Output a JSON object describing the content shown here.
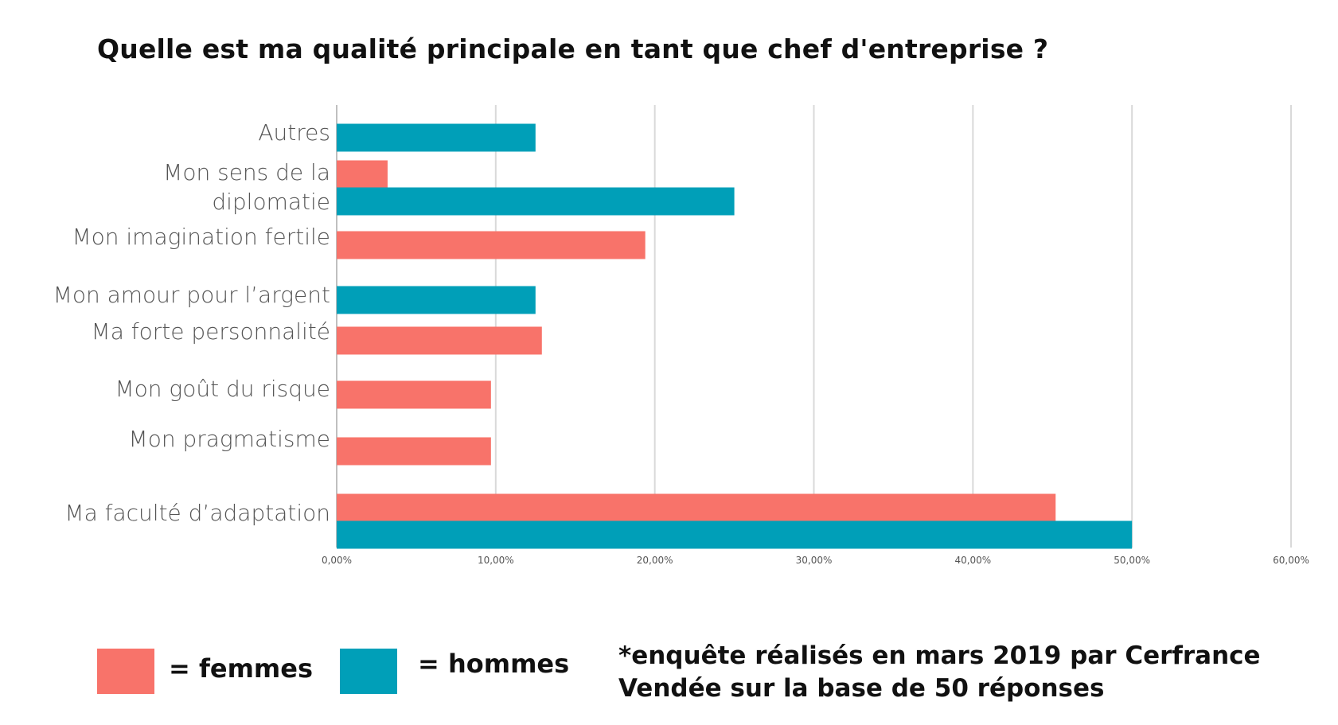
{
  "title": "Quelle est ma qualité principale en tant que chef d'entreprise ?",
  "colors": {
    "femmes": "#f8736a",
    "hommes": "#009fb8",
    "grid": "#d9d9d9",
    "axis": "#bfbfbf"
  },
  "chart_data": {
    "type": "bar",
    "orientation": "horizontal",
    "title": "Quelle est ma qualité principale en tant que chef d'entreprise ?",
    "categories": [
      "Autres",
      "Mon sens de la\ndiplomatie",
      "Mon imagination fertile",
      "Mon amour pour l’argent",
      "Ma forte personnalité",
      "Mon goût du risque",
      "Mon pragmatisme",
      "Ma faculté d’adaptation"
    ],
    "series": [
      {
        "name": "femmes",
        "values": [
          null,
          3.2,
          19.4,
          null,
          12.9,
          9.7,
          9.7,
          45.2
        ]
      },
      {
        "name": "hommes",
        "values": [
          12.5,
          25.0,
          null,
          12.5,
          null,
          null,
          null,
          50.0
        ]
      }
    ],
    "xlim": [
      0,
      60
    ],
    "tick_labels": [
      "0,00%",
      "10,00%",
      "20,00%",
      "30,00%",
      "40,00%",
      "50,00%",
      "60,00%"
    ],
    "grid": true,
    "legend_placement": "bottom-left"
  },
  "legend": {
    "femmes_label": "= femmes",
    "hommes_label": "= hommes"
  },
  "footnote": "*enquête réalisés en mars 2019 par Cerfrance\nVendée  sur la base de 50 réponses"
}
